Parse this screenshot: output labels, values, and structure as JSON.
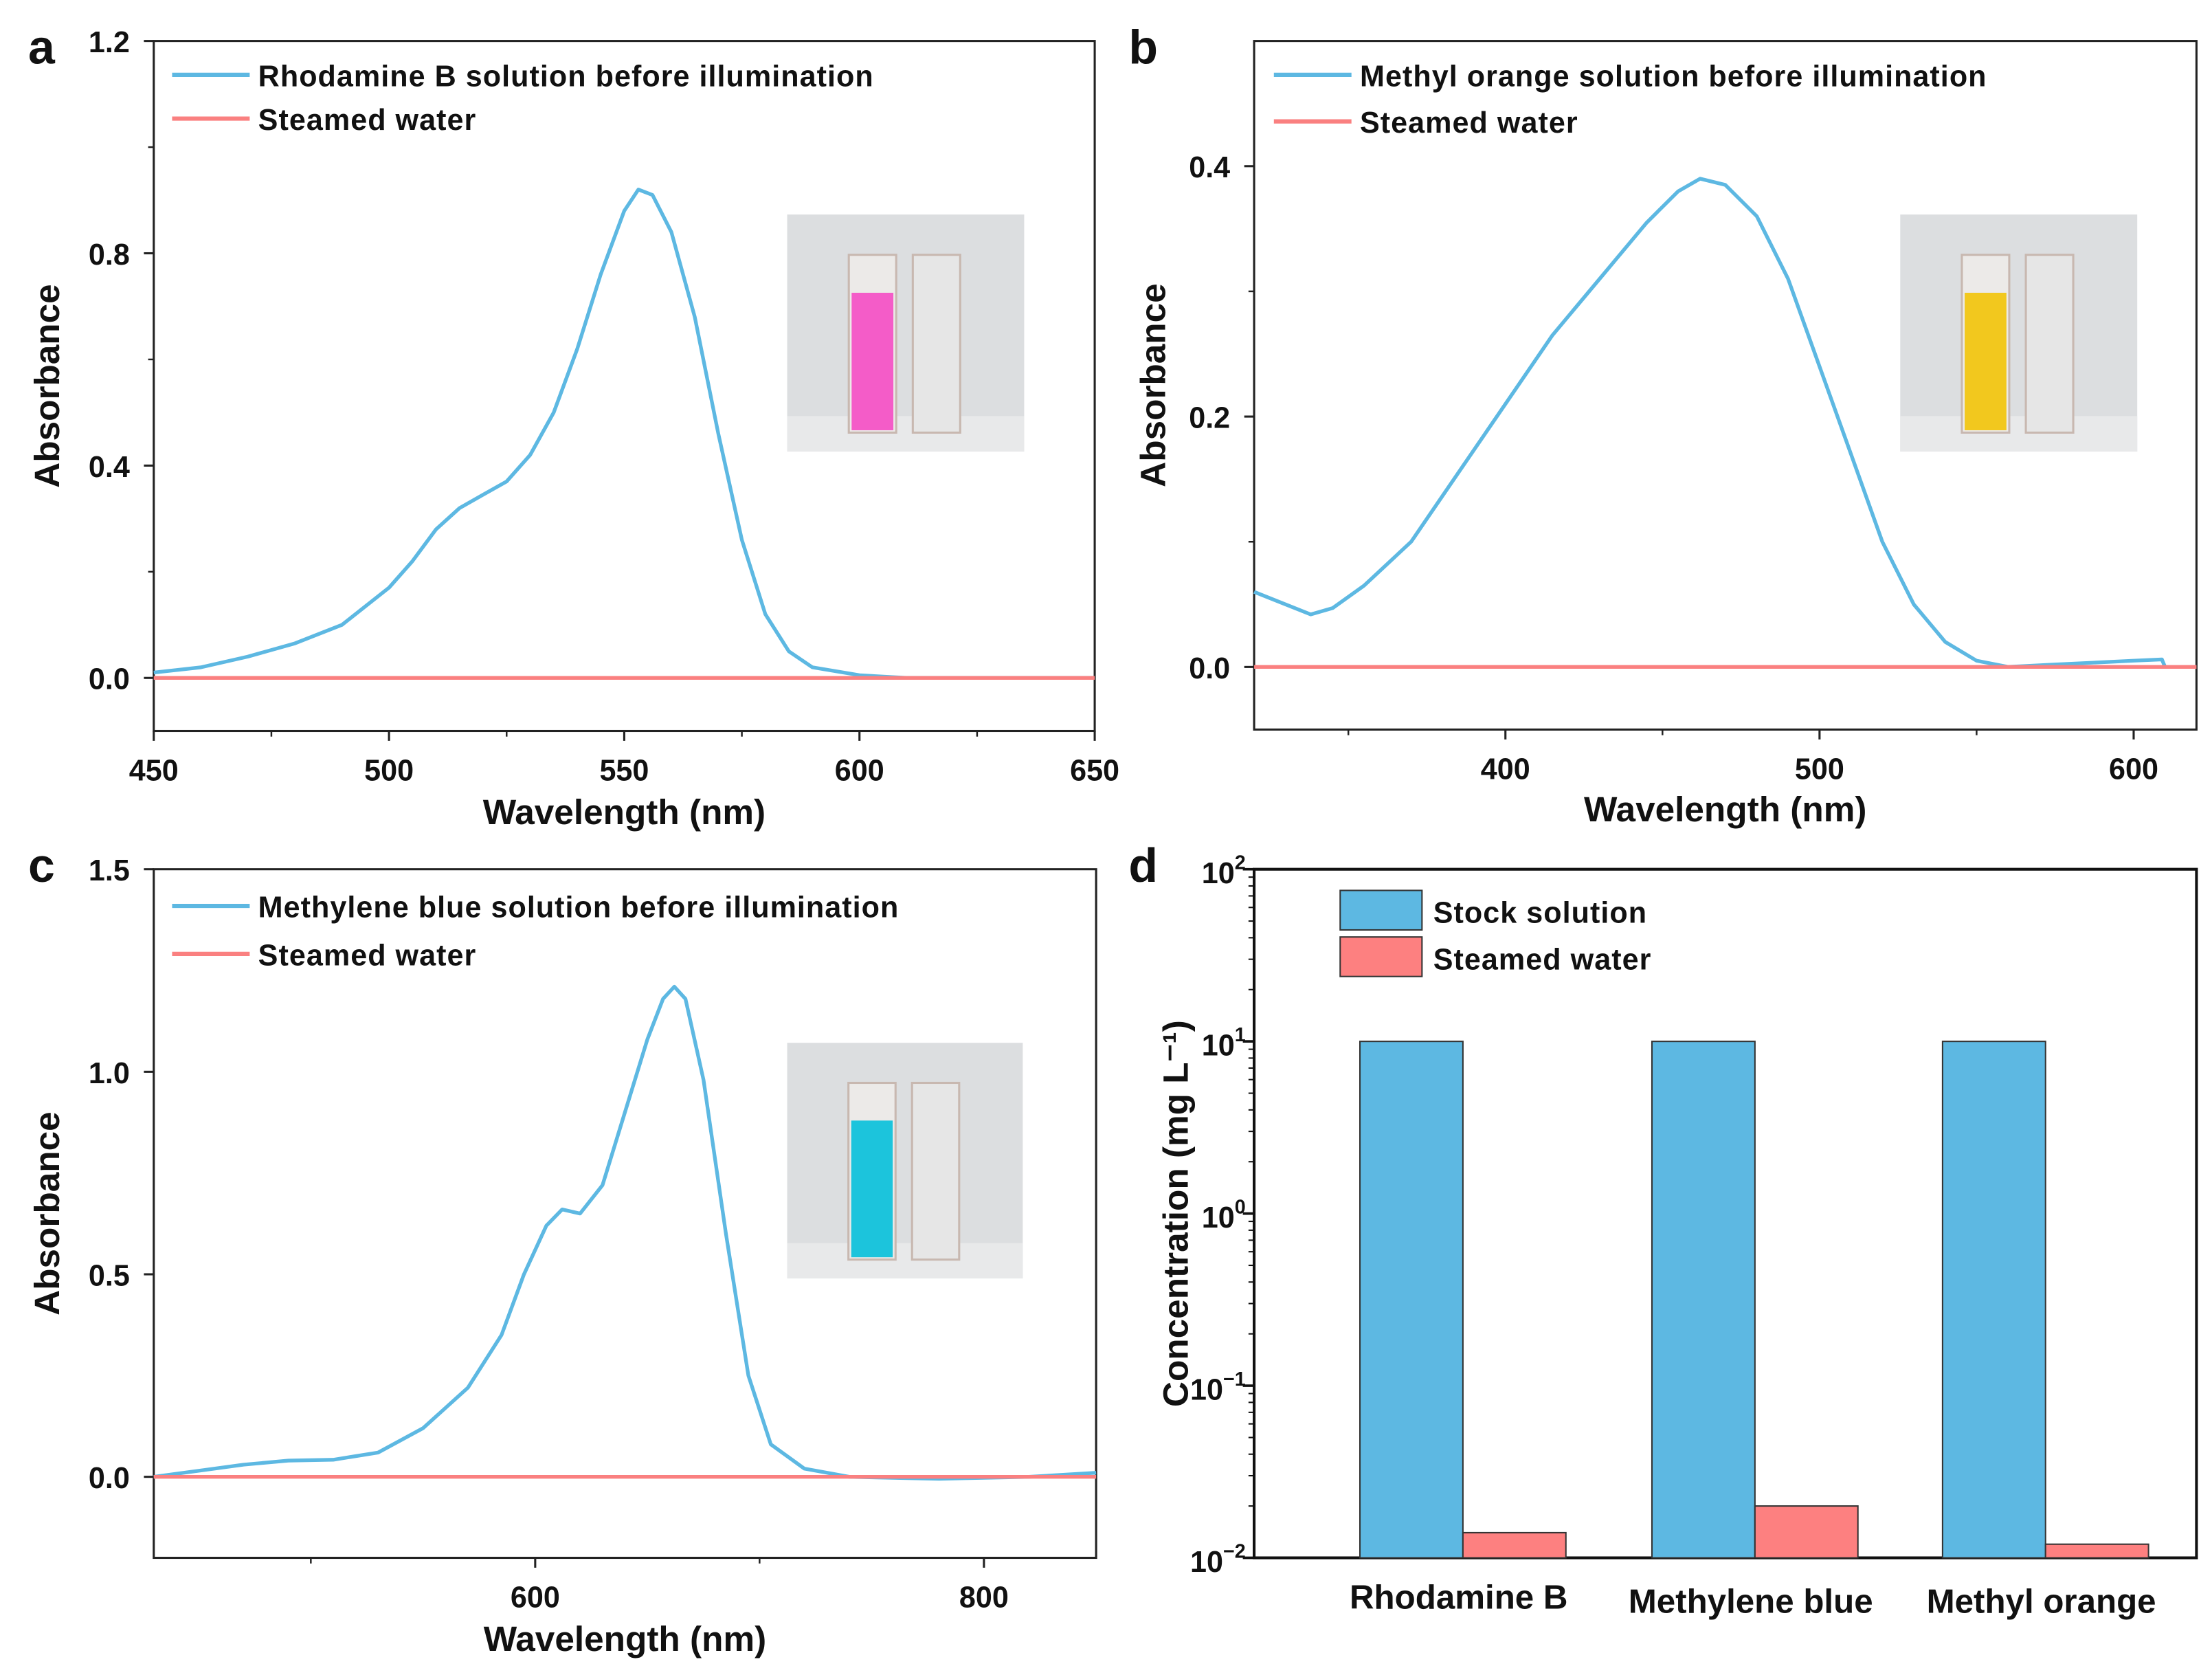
{
  "colors": {
    "solution": "#5db8e2",
    "water": "#fa8080",
    "bar_stock": "#5db8e2",
    "bar_water": "#fd8080"
  },
  "chart_data": [
    {
      "panel": "a",
      "type": "line",
      "xlabel": "Wavelength (nm)",
      "ylabel": "Absorbance",
      "xlim": [
        450,
        650
      ],
      "ylim": [
        -0.1,
        1.2
      ],
      "xticks": [
        450,
        500,
        550,
        600,
        650
      ],
      "xminor": [
        475,
        525,
        575,
        625
      ],
      "yticks": [
        0.0,
        0.4,
        0.8,
        1.2
      ],
      "yminor": [
        0.2,
        0.6,
        1.0
      ],
      "xticklabels": [
        "450",
        "500",
        "550",
        "600",
        "650"
      ],
      "yticklabels": [
        "0.0",
        "0.4",
        "0.8",
        "1.2"
      ],
      "inset": "rhodamine-b cuvette photo",
      "inset_color": "#f45cc8",
      "series": [
        {
          "name": "Rhodamine B solution before illumination",
          "color": "#5db8e2",
          "x": [
            450,
            460,
            470,
            480,
            490,
            500,
            505,
            510,
            515,
            520,
            525,
            530,
            535,
            540,
            545,
            550,
            553,
            556,
            560,
            565,
            570,
            575,
            580,
            585,
            590,
            600,
            610,
            650
          ],
          "y": [
            0.01,
            0.02,
            0.04,
            0.065,
            0.1,
            0.17,
            0.22,
            0.28,
            0.32,
            0.345,
            0.37,
            0.42,
            0.5,
            0.62,
            0.76,
            0.88,
            0.92,
            0.91,
            0.84,
            0.68,
            0.46,
            0.26,
            0.12,
            0.05,
            0.02,
            0.005,
            0.0,
            0.0
          ]
        },
        {
          "name": "Steamed water",
          "color": "#fa8080",
          "x": [
            450,
            650
          ],
          "y": [
            0.0,
            0.0
          ]
        }
      ]
    },
    {
      "panel": "b",
      "type": "line",
      "xlabel": "Wavelength (nm)",
      "ylabel": "Absorbance",
      "xlim": [
        320,
        620
      ],
      "ylim": [
        -0.05,
        0.5
      ],
      "xticks": [
        400,
        500,
        600
      ],
      "xminor": [
        350,
        450,
        550
      ],
      "yticks": [
        0.0,
        0.2,
        0.4
      ],
      "yminor": [
        0.1,
        0.3
      ],
      "xticklabels": [
        "400",
        "500",
        "600"
      ],
      "yticklabels": [
        "0.0",
        "0.2",
        "0.4"
      ],
      "inset": "methyl-orange cuvette photo",
      "inset_color": "#f2c81e",
      "series": [
        {
          "name": "Methyl orange solution before illumination",
          "color": "#5db8e2",
          "x": [
            320,
            330,
            338,
            345,
            355,
            370,
            385,
            400,
            415,
            430,
            445,
            455,
            462,
            470,
            480,
            490,
            500,
            510,
            520,
            530,
            540,
            550,
            560,
            575,
            600,
            609,
            610
          ],
          "y": [
            0.06,
            0.05,
            0.042,
            0.047,
            0.065,
            0.1,
            0.155,
            0.21,
            0.265,
            0.31,
            0.355,
            0.38,
            0.39,
            0.385,
            0.36,
            0.31,
            0.24,
            0.17,
            0.1,
            0.05,
            0.02,
            0.005,
            0.0,
            0.002,
            0.005,
            0.006,
            0.0
          ]
        },
        {
          "name": "Steamed water",
          "color": "#fa8080",
          "x": [
            320,
            620
          ],
          "y": [
            0.0,
            0.0
          ]
        }
      ]
    },
    {
      "panel": "c",
      "type": "line",
      "xlabel": "Wavelength (nm)",
      "ylabel": "Absorbance",
      "xlim": [
        430,
        850
      ],
      "ylim": [
        -0.2,
        1.5
      ],
      "xticks": [
        600,
        800
      ],
      "xminor": [
        500,
        700
      ],
      "yticks": [
        0.0,
        0.5,
        1.0,
        1.5
      ],
      "yminor": [],
      "xticklabels": [
        "600",
        "800"
      ],
      "yticklabels": [
        "0.0",
        "0.5",
        "1.0",
        "1.5"
      ],
      "inset": "methylene-blue cuvette photo",
      "inset_color": "#1cc4dc",
      "series": [
        {
          "name": "Methylene blue solution before illumination",
          "color": "#5db8e2",
          "x": [
            430,
            450,
            470,
            490,
            510,
            530,
            550,
            570,
            585,
            595,
            605,
            612,
            620,
            630,
            640,
            650,
            657,
            662,
            667,
            675,
            685,
            695,
            705,
            720,
            740,
            780,
            820,
            850
          ],
          "y": [
            0.0,
            0.015,
            0.03,
            0.04,
            0.042,
            0.06,
            0.12,
            0.22,
            0.35,
            0.5,
            0.62,
            0.66,
            0.65,
            0.72,
            0.9,
            1.08,
            1.18,
            1.21,
            1.18,
            0.98,
            0.6,
            0.25,
            0.08,
            0.02,
            0.0,
            -0.005,
            0.0,
            0.01
          ]
        },
        {
          "name": "Steamed water",
          "color": "#fa8080",
          "x": [
            430,
            850
          ],
          "y": [
            0.0,
            0.0
          ]
        }
      ]
    },
    {
      "panel": "d",
      "type": "bar",
      "yscale": "log",
      "xlabel": "",
      "ylabel": "Concentration (mg L⁻¹)",
      "ylim": [
        0.01,
        100
      ],
      "ytick_bases": [
        "10",
        "10",
        "10",
        "10",
        "10"
      ],
      "ytick_exps": [
        "2",
        "1",
        "0",
        "−1",
        "−2"
      ],
      "categories": [
        "Rhodamine B",
        "Methylene blue",
        "Methyl orange"
      ],
      "series": [
        {
          "name": "Stock solution",
          "color": "#5db8e2",
          "values": [
            10,
            10,
            10
          ]
        },
        {
          "name": "Steamed water",
          "color": "#fd8080",
          "values": [
            0.014,
            0.02,
            0.012
          ]
        }
      ]
    }
  ]
}
